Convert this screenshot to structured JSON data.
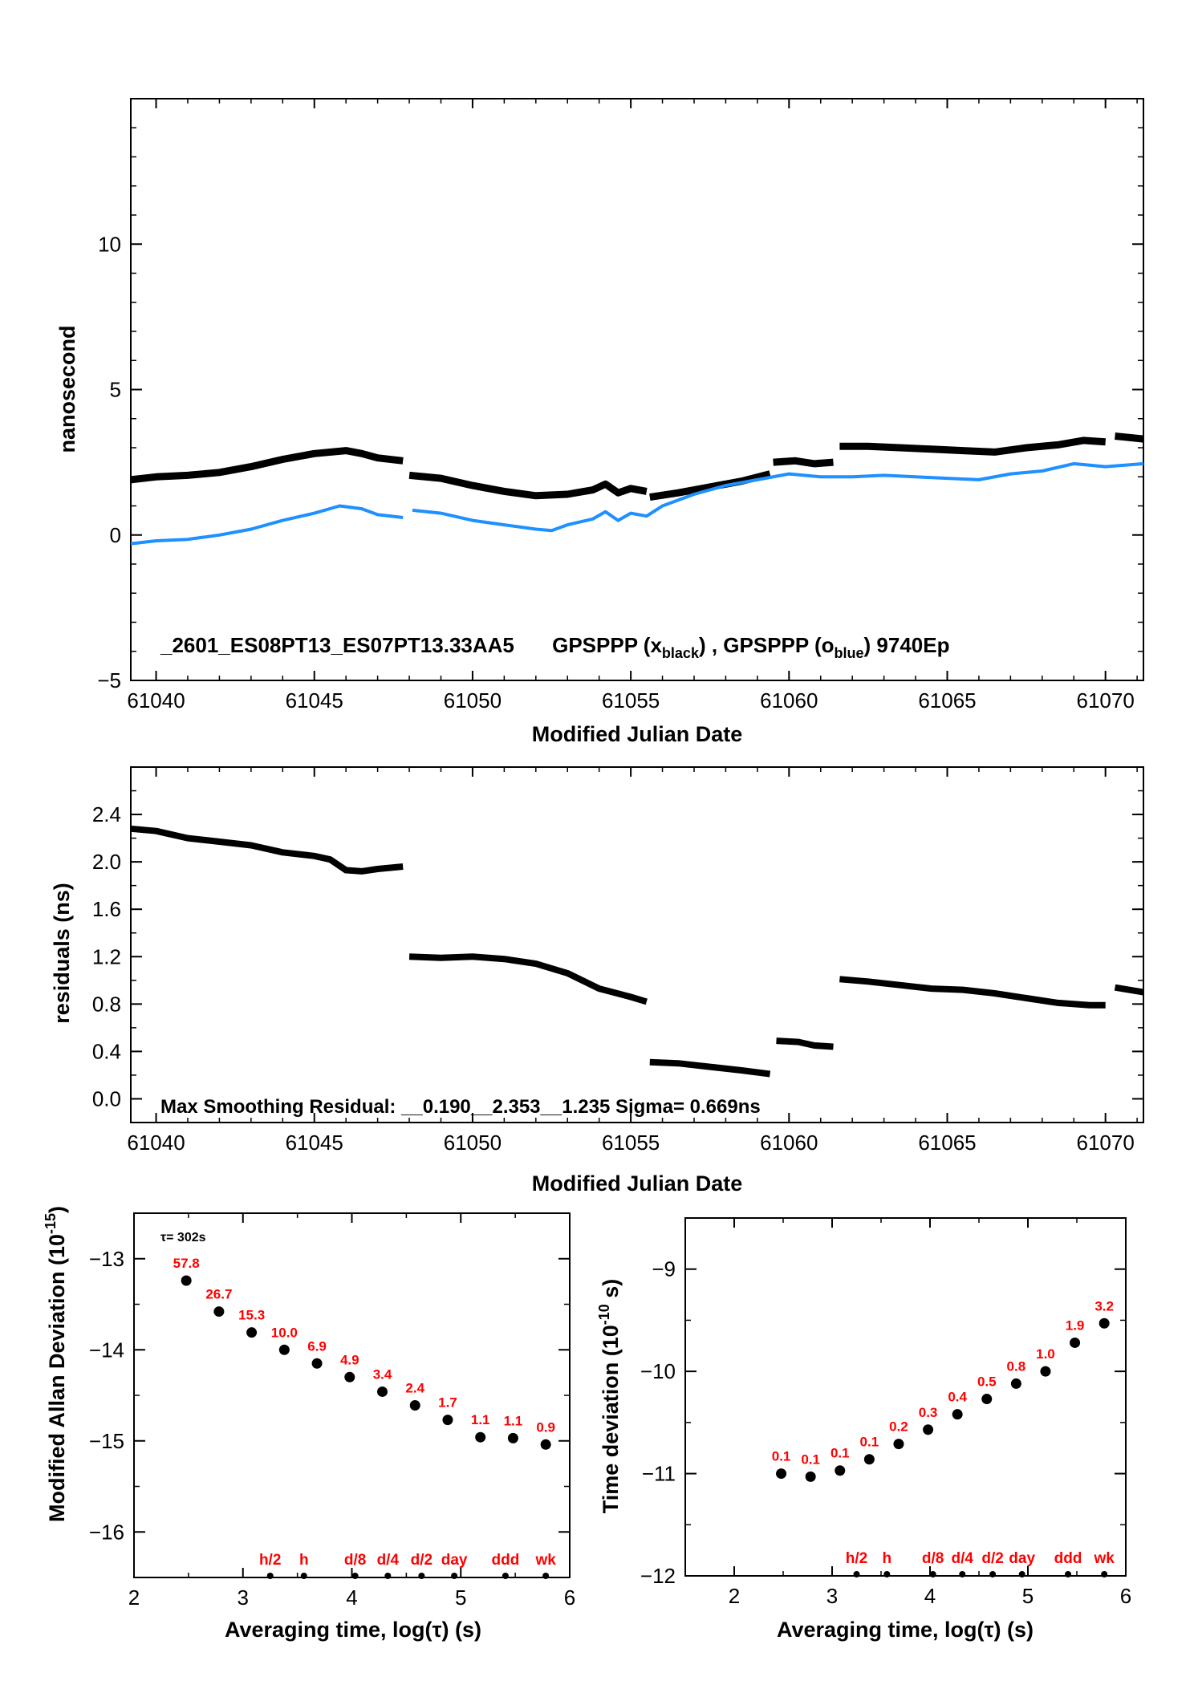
{
  "colors": {
    "black_series": "#000000",
    "blue_series": "#1e90ff",
    "labels_red": "#ff0000",
    "axes": "#000000"
  },
  "chart_data": [
    {
      "id": "phase",
      "type": "scatter",
      "xlabel": "Modified Julian Date",
      "ylabel": "nanosecond",
      "xlim": [
        61039.2,
        61071.2
      ],
      "ylim": [
        -5,
        15
      ],
      "xticks": [
        61040,
        61045,
        61050,
        61055,
        61060,
        61065,
        61070
      ],
      "yticks": [
        -5,
        0,
        5,
        10
      ],
      "grid": false,
      "annotation": {
        "site": "_2601_ES08PT13_ES07PT13.33AA5",
        "label1": "GPSPPP (x",
        "sub1": "black",
        "label2": ") ,  GPSPPP (o",
        "sub2": "blue",
        "label3": ")  9740Ep"
      },
      "series": [
        {
          "name": "GPSPPP (x black)",
          "color": "#000000",
          "segments": [
            [
              [
                61039.2,
                1.9
              ],
              [
                61040,
                2.0
              ],
              [
                61041,
                2.05
              ],
              [
                61042,
                2.15
              ],
              [
                61043,
                2.35
              ],
              [
                61044,
                2.6
              ],
              [
                61045,
                2.8
              ],
              [
                61046,
                2.9
              ],
              [
                61046.5,
                2.8
              ],
              [
                61047,
                2.65
              ],
              [
                61047.8,
                2.55
              ]
            ],
            [
              [
                61048,
                2.05
              ],
              [
                61049,
                1.95
              ],
              [
                61050,
                1.7
              ],
              [
                61051,
                1.5
              ],
              [
                61052,
                1.35
              ],
              [
                61053,
                1.4
              ],
              [
                61053.8,
                1.55
              ],
              [
                61054.2,
                1.75
              ],
              [
                61054.6,
                1.45
              ],
              [
                61055,
                1.6
              ],
              [
                61055.5,
                1.5
              ]
            ],
            [
              [
                61055.6,
                1.3
              ],
              [
                61056.5,
                1.45
              ],
              [
                61057.5,
                1.65
              ],
              [
                61058.5,
                1.85
              ],
              [
                61059.4,
                2.1
              ]
            ],
            [
              [
                61059.5,
                2.5
              ],
              [
                61060.2,
                2.55
              ],
              [
                61060.8,
                2.45
              ],
              [
                61061.4,
                2.5
              ]
            ],
            [
              [
                61061.6,
                3.05
              ],
              [
                61062.5,
                3.05
              ],
              [
                61063.5,
                3.0
              ],
              [
                61064.5,
                2.95
              ],
              [
                61065.5,
                2.9
              ],
              [
                61066.5,
                2.85
              ],
              [
                61067.5,
                3.0
              ],
              [
                61068.5,
                3.1
              ],
              [
                61069.3,
                3.25
              ],
              [
                61070,
                3.2
              ]
            ],
            [
              [
                61070.3,
                3.4
              ],
              [
                61071.2,
                3.3
              ]
            ]
          ]
        },
        {
          "name": "GPSPPP (o blue)",
          "color": "#1e90ff",
          "segments": [
            [
              [
                61039.2,
                -0.3
              ],
              [
                61040,
                -0.2
              ],
              [
                61041,
                -0.15
              ],
              [
                61042,
                0.0
              ],
              [
                61043,
                0.2
              ],
              [
                61044,
                0.5
              ],
              [
                61045,
                0.75
              ],
              [
                61045.8,
                1.0
              ],
              [
                61046.5,
                0.9
              ],
              [
                61047,
                0.7
              ],
              [
                61047.8,
                0.6
              ]
            ],
            [
              [
                61048.1,
                0.85
              ],
              [
                61049,
                0.75
              ],
              [
                61050,
                0.5
              ],
              [
                61051,
                0.35
              ],
              [
                61052,
                0.2
              ],
              [
                61052.5,
                0.15
              ],
              [
                61053,
                0.35
              ],
              [
                61053.8,
                0.55
              ],
              [
                61054.2,
                0.8
              ],
              [
                61054.6,
                0.5
              ],
              [
                61055,
                0.75
              ],
              [
                61055.5,
                0.65
              ],
              [
                61056,
                1.0
              ],
              [
                61057,
                1.4
              ],
              [
                61058,
                1.7
              ],
              [
                61059,
                1.9
              ],
              [
                61060,
                2.1
              ],
              [
                61061,
                2.0
              ],
              [
                61062,
                2.0
              ],
              [
                61063,
                2.05
              ],
              [
                61064,
                2.0
              ],
              [
                61065,
                1.95
              ],
              [
                61066,
                1.9
              ],
              [
                61067,
                2.1
              ],
              [
                61068,
                2.2
              ],
              [
                61069,
                2.45
              ],
              [
                61070,
                2.35
              ],
              [
                61071.2,
                2.45
              ]
            ]
          ]
        }
      ]
    },
    {
      "id": "residuals",
      "type": "scatter",
      "xlabel": "Modified Julian Date",
      "ylabel": "residuals (ns)",
      "xlim": [
        61039.2,
        61071.2
      ],
      "ylim": [
        -0.2,
        2.8
      ],
      "xticks": [
        61040,
        61045,
        61050,
        61055,
        61060,
        61065,
        61070
      ],
      "yticks": [
        0.0,
        0.4,
        0.8,
        1.2,
        1.6,
        2.0,
        2.4
      ],
      "ytick_labels": [
        "0.0",
        "0.4",
        "0.8",
        "1.2",
        "1.6",
        "2.0",
        "2.4"
      ],
      "annotation": "Max Smoothing Residual: __0.190__2.353__1.235  Sigma= 0.669ns",
      "series": [
        {
          "color": "#000000",
          "segments": [
            [
              [
                61039.2,
                2.28
              ],
              [
                61040,
                2.26
              ],
              [
                61041,
                2.2
              ],
              [
                61042,
                2.17
              ],
              [
                61043,
                2.14
              ],
              [
                61044,
                2.08
              ],
              [
                61045,
                2.05
              ],
              [
                61045.5,
                2.02
              ],
              [
                61046,
                1.93
              ],
              [
                61046.5,
                1.92
              ],
              [
                61047,
                1.94
              ],
              [
                61047.8,
                1.96
              ]
            ],
            [
              [
                61048,
                1.2
              ],
              [
                61049,
                1.19
              ],
              [
                61050,
                1.2
              ],
              [
                61051,
                1.18
              ],
              [
                61052,
                1.14
              ],
              [
                61053,
                1.06
              ],
              [
                61054,
                0.93
              ],
              [
                61055,
                0.86
              ],
              [
                61055.5,
                0.82
              ]
            ],
            [
              [
                61055.6,
                0.31
              ],
              [
                61056.5,
                0.3
              ],
              [
                61057.5,
                0.27
              ],
              [
                61058.5,
                0.24
              ],
              [
                61059.4,
                0.21
              ]
            ],
            [
              [
                61059.6,
                0.49
              ],
              [
                61060.3,
                0.48
              ],
              [
                61060.8,
                0.45
              ],
              [
                61061.4,
                0.44
              ]
            ],
            [
              [
                61061.6,
                1.01
              ],
              [
                61062.5,
                0.99
              ],
              [
                61063.5,
                0.96
              ],
              [
                61064.5,
                0.93
              ],
              [
                61065.5,
                0.92
              ],
              [
                61066.5,
                0.89
              ],
              [
                61067.5,
                0.85
              ],
              [
                61068.5,
                0.81
              ],
              [
                61069.5,
                0.79
              ],
              [
                61070,
                0.79
              ]
            ],
            [
              [
                61070.3,
                0.94
              ],
              [
                61071.2,
                0.9
              ]
            ]
          ]
        }
      ]
    },
    {
      "id": "mdev",
      "type": "scatter",
      "xlabel": "Averaging time, log(τ) (s)",
      "ylabel": "Modified Allan Deviation (10",
      "ylabel_exp": "-15",
      "ylabel_end": ")",
      "xlim": [
        2,
        6
      ],
      "ylim": [
        -16.5,
        -12.5
      ],
      "xticks": [
        2,
        3,
        4,
        5,
        6
      ],
      "yticks": [
        -16,
        -15,
        -14,
        -13
      ],
      "ytick_labels": [
        "−16",
        "−15",
        "−14",
        "−13"
      ],
      "tau_note": "τ= 302s",
      "x": [
        2.48,
        2.78,
        3.08,
        3.38,
        3.68,
        3.98,
        4.28,
        4.58,
        4.88,
        5.18,
        5.48,
        5.78
      ],
      "y": [
        -13.24,
        -13.58,
        -13.81,
        -14.0,
        -14.15,
        -14.3,
        -14.46,
        -14.61,
        -14.77,
        -14.96,
        -14.97,
        -15.04
      ],
      "point_labels": [
        "57.8",
        "26.7",
        "15.3",
        "10.0",
        "6.9",
        "4.9",
        "3.4",
        "2.4",
        "1.7",
        "1.1",
        "1.1",
        "0.9"
      ],
      "markers": [
        {
          "x": 3.25,
          "label": "h/2"
        },
        {
          "x": 3.56,
          "label": "h"
        },
        {
          "x": 4.03,
          "label": "d/8"
        },
        {
          "x": 4.33,
          "label": "d/4"
        },
        {
          "x": 4.64,
          "label": "d/2"
        },
        {
          "x": 4.94,
          "label": "day"
        },
        {
          "x": 5.41,
          "label": "ddd"
        },
        {
          "x": 5.78,
          "label": "wk"
        }
      ]
    },
    {
      "id": "tdev",
      "type": "scatter",
      "xlabel": "Averaging time, log(τ) (s)",
      "ylabel": "Time deviation (10",
      "ylabel_exp": "-10",
      "ylabel_end": " s)",
      "xlim": [
        1.5,
        6
      ],
      "ylim": [
        -12,
        -8.5
      ],
      "xticks": [
        2,
        3,
        4,
        5,
        6
      ],
      "yticks": [
        -12,
        -11,
        -10,
        -9
      ],
      "ytick_labels": [
        "−12",
        "−11",
        "−10",
        "−9"
      ],
      "x": [
        2.48,
        2.78,
        3.08,
        3.38,
        3.68,
        3.98,
        4.28,
        4.58,
        4.88,
        5.18,
        5.48,
        5.78
      ],
      "y": [
        -11.0,
        -11.03,
        -10.97,
        -10.86,
        -10.71,
        -10.57,
        -10.42,
        -10.27,
        -10.12,
        -10.0,
        -9.72,
        -9.53
      ],
      "point_labels": [
        "0.1",
        "0.1",
        "0.1",
        "0.1",
        "0.2",
        "0.3",
        "0.4",
        "0.5",
        "0.8",
        "1.0",
        "1.9",
        "3.2"
      ],
      "markers": [
        {
          "x": 3.25,
          "label": "h/2"
        },
        {
          "x": 3.56,
          "label": "h"
        },
        {
          "x": 4.03,
          "label": "d/8"
        },
        {
          "x": 4.33,
          "label": "d/4"
        },
        {
          "x": 4.64,
          "label": "d/2"
        },
        {
          "x": 4.94,
          "label": "day"
        },
        {
          "x": 5.41,
          "label": "ddd"
        },
        {
          "x": 5.78,
          "label": "wk"
        }
      ]
    }
  ]
}
